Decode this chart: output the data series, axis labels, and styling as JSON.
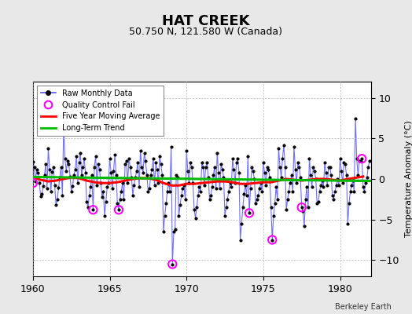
{
  "title": "HAT CREEK",
  "subtitle": "50.750 N, 121.580 W (Canada)",
  "ylabel": "Temperature Anomaly (°C)",
  "watermark": "Berkeley Earth",
  "xlim": [
    1960,
    1982
  ],
  "ylim": [
    -12,
    12
  ],
  "yticks": [
    -10,
    -5,
    0,
    5,
    10
  ],
  "xticks": [
    1960,
    1965,
    1970,
    1975,
    1980
  ],
  "bg_color": "#e8e8e8",
  "plot_bg_color": "#ffffff",
  "raw_line_color": "#5555ff",
  "raw_dot_color": "#000000",
  "ma_color": "#ff0000",
  "trend_color": "#00bb00",
  "qc_color": "#ff00ff",
  "raw_data": [
    1960.0,
    2.1,
    1960.083,
    1.5,
    1960.167,
    -0.3,
    1960.25,
    1.2,
    1960.333,
    0.8,
    1960.417,
    -0.5,
    1960.5,
    -2.1,
    1960.583,
    -1.8,
    1960.667,
    -0.9,
    1960.75,
    0.5,
    1960.833,
    1.8,
    1960.917,
    -1.2,
    1961.0,
    3.8,
    1961.083,
    1.2,
    1961.167,
    -1.5,
    1961.25,
    0.9,
    1961.333,
    1.5,
    1961.417,
    -0.8,
    1961.5,
    -3.2,
    1961.583,
    -2.5,
    1961.667,
    -1.1,
    1961.75,
    0.2,
    1961.833,
    1.5,
    1961.917,
    -2.0,
    1962.0,
    6.5,
    1962.083,
    2.5,
    1962.167,
    1.0,
    1962.25,
    2.2,
    1962.333,
    1.8,
    1962.417,
    0.3,
    1962.5,
    -1.5,
    1962.583,
    -0.9,
    1962.667,
    0.5,
    1962.75,
    1.2,
    1962.833,
    2.8,
    1962.917,
    -0.5,
    1963.0,
    2.0,
    1963.083,
    3.2,
    1963.167,
    0.5,
    1963.25,
    1.5,
    1963.333,
    2.5,
    1963.417,
    0.8,
    1963.5,
    -2.8,
    1963.583,
    -3.5,
    1963.667,
    -2.0,
    1963.75,
    -1.0,
    1963.833,
    0.5,
    1963.917,
    -3.8,
    1964.0,
    1.5,
    1964.083,
    2.8,
    1964.167,
    -0.8,
    1964.25,
    1.8,
    1964.333,
    1.2,
    1964.417,
    -0.5,
    1964.5,
    -2.2,
    1964.583,
    -1.5,
    1964.667,
    -4.5,
    1964.75,
    -2.8,
    1964.833,
    -1.0,
    1964.917,
    -0.5,
    1965.0,
    2.5,
    1965.083,
    0.8,
    1965.167,
    -1.2,
    1965.25,
    1.0,
    1965.333,
    3.0,
    1965.417,
    0.5,
    1965.5,
    -3.0,
    1965.583,
    -3.8,
    1965.667,
    -2.5,
    1965.75,
    -1.5,
    1965.833,
    -0.5,
    1965.917,
    -2.5,
    1966.0,
    1.8,
    1966.083,
    2.2,
    1966.167,
    -0.5,
    1966.25,
    2.5,
    1966.333,
    1.5,
    1966.417,
    0.2,
    1966.5,
    -2.0,
    1966.583,
    -0.8,
    1966.667,
    0.2,
    1966.75,
    1.0,
    1966.833,
    2.0,
    1966.917,
    -1.0,
    1967.0,
    3.5,
    1967.083,
    1.5,
    1967.167,
    0.8,
    1967.25,
    3.2,
    1967.333,
    2.2,
    1967.417,
    0.5,
    1967.5,
    -1.5,
    1967.583,
    -1.2,
    1967.667,
    0.5,
    1967.75,
    1.2,
    1967.833,
    2.5,
    1967.917,
    -0.8,
    1968.0,
    2.0,
    1968.083,
    1.2,
    1968.167,
    -0.5,
    1968.25,
    2.8,
    1968.333,
    1.8,
    1968.417,
    0.5,
    1968.5,
    -6.5,
    1968.583,
    -4.5,
    1968.667,
    -3.0,
    1968.75,
    -1.5,
    1968.833,
    -0.5,
    1968.917,
    -1.5,
    1969.0,
    4.0,
    1969.083,
    -10.5,
    1969.167,
    -6.5,
    1969.25,
    -6.2,
    1969.333,
    0.5,
    1969.417,
    0.2,
    1969.5,
    -4.5,
    1969.583,
    -3.2,
    1969.667,
    -2.0,
    1969.75,
    -1.2,
    1969.833,
    -0.8,
    1969.917,
    -2.5,
    1970.0,
    3.5,
    1970.083,
    1.0,
    1970.167,
    -0.5,
    1970.25,
    2.0,
    1970.333,
    1.5,
    1970.417,
    -0.5,
    1970.5,
    -3.8,
    1970.583,
    -4.8,
    1970.667,
    -3.5,
    1970.75,
    -2.0,
    1970.833,
    -1.0,
    1970.917,
    -1.5,
    1971.0,
    2.0,
    1971.083,
    1.5,
    1971.167,
    -0.8,
    1971.25,
    1.5,
    1971.333,
    2.0,
    1971.417,
    0.2,
    1971.5,
    -2.5,
    1971.583,
    -2.0,
    1971.667,
    -1.0,
    1971.75,
    0.5,
    1971.833,
    1.5,
    1971.917,
    -1.2,
    1972.0,
    3.2,
    1972.083,
    0.8,
    1972.167,
    -1.2,
    1972.25,
    1.8,
    1972.333,
    1.2,
    1972.417,
    0.2,
    1972.5,
    -4.5,
    1972.583,
    -3.5,
    1972.667,
    -2.5,
    1972.75,
    -1.5,
    1972.833,
    -0.5,
    1972.917,
    -1.0,
    1973.0,
    2.5,
    1973.083,
    1.2,
    1973.167,
    -0.5,
    1973.25,
    2.0,
    1973.333,
    2.5,
    1973.417,
    0.8,
    1973.5,
    -7.5,
    1973.583,
    -5.5,
    1973.667,
    -3.5,
    1973.75,
    -1.8,
    1973.833,
    -0.8,
    1973.917,
    -2.0,
    1974.0,
    2.8,
    1974.083,
    -4.2,
    1974.167,
    -1.2,
    1974.25,
    1.5,
    1974.333,
    1.0,
    1974.417,
    0.0,
    1974.5,
    -3.0,
    1974.583,
    -2.5,
    1974.667,
    -2.0,
    1974.75,
    -1.2,
    1974.833,
    -0.5,
    1974.917,
    -1.5,
    1975.0,
    2.0,
    1975.083,
    0.8,
    1975.167,
    -0.8,
    1975.25,
    1.5,
    1975.333,
    1.2,
    1975.417,
    0.2,
    1975.5,
    -3.5,
    1975.583,
    -7.5,
    1975.667,
    -4.5,
    1975.75,
    -3.0,
    1975.833,
    -1.0,
    1975.917,
    -2.5,
    1976.0,
    3.8,
    1976.083,
    1.5,
    1976.167,
    0.2,
    1976.25,
    2.5,
    1976.333,
    4.2,
    1976.417,
    1.5,
    1976.5,
    -3.8,
    1976.583,
    -2.5,
    1976.667,
    -1.5,
    1976.75,
    -0.5,
    1976.833,
    0.5,
    1976.917,
    -1.5,
    1977.0,
    4.0,
    1977.083,
    1.2,
    1977.167,
    -0.5,
    1977.25,
    2.0,
    1977.333,
    1.5,
    1977.417,
    0.2,
    1977.5,
    -3.5,
    1977.583,
    -4.0,
    1977.667,
    -5.8,
    1977.75,
    -2.5,
    1977.833,
    -1.0,
    1977.917,
    -3.5,
    1978.0,
    2.5,
    1978.083,
    0.5,
    1978.167,
    -1.0,
    1978.25,
    1.5,
    1978.333,
    1.0,
    1978.417,
    0.0,
    1978.5,
    -3.0,
    1978.583,
    -2.8,
    1978.667,
    -1.5,
    1978.75,
    -0.8,
    1978.833,
    -0.2,
    1978.917,
    -1.0,
    1979.0,
    2.0,
    1979.083,
    0.8,
    1979.167,
    -0.8,
    1979.25,
    1.5,
    1979.333,
    1.5,
    1979.417,
    0.5,
    1979.5,
    -2.0,
    1979.583,
    -2.5,
    1979.667,
    -1.5,
    1979.75,
    -0.8,
    1979.833,
    0.0,
    1979.917,
    -0.8,
    1980.0,
    2.5,
    1980.083,
    1.0,
    1980.167,
    -0.5,
    1980.25,
    2.0,
    1980.333,
    1.8,
    1980.417,
    0.5,
    1980.5,
    -5.5,
    1980.583,
    -3.0,
    1980.667,
    -1.5,
    1980.75,
    -0.8,
    1980.833,
    -0.2,
    1980.917,
    -1.5,
    1981.0,
    7.5,
    1981.083,
    2.5,
    1981.167,
    0.5,
    1981.25,
    2.2,
    1981.333,
    2.2,
    1981.417,
    2.5,
    1981.5,
    -1.0,
    1981.583,
    -1.5,
    1981.667,
    -0.5,
    1981.75,
    0.2,
    1981.833,
    1.5,
    1981.917,
    2.2
  ],
  "qc_fail_points": [
    [
      1960.0,
      -0.5
    ],
    [
      1963.917,
      -3.8
    ],
    [
      1965.583,
      -3.8
    ],
    [
      1969.083,
      -10.5
    ],
    [
      1974.083,
      -4.2
    ],
    [
      1975.583,
      -7.5
    ],
    [
      1977.5,
      -3.5
    ],
    [
      1981.417,
      2.5
    ]
  ],
  "moving_avg_x": [
    1960.0,
    1960.5,
    1961.0,
    1961.5,
    1962.0,
    1962.5,
    1963.0,
    1963.5,
    1964.0,
    1964.5,
    1965.0,
    1965.5,
    1966.0,
    1966.5,
    1967.0,
    1967.5,
    1968.0,
    1968.5,
    1969.0,
    1969.5,
    1970.0,
    1970.5,
    1971.0,
    1971.5,
    1972.0,
    1972.5,
    1973.0,
    1973.5,
    1974.0,
    1974.5,
    1975.0,
    1975.5,
    1976.0,
    1976.5,
    1977.0,
    1977.5,
    1978.0,
    1978.5,
    1979.0,
    1979.5,
    1980.0,
    1980.5,
    1981.5
  ],
  "moving_avg_y": [
    0.2,
    -0.1,
    -0.3,
    -0.2,
    0.0,
    0.2,
    0.1,
    -0.2,
    -0.4,
    -0.5,
    -0.5,
    -0.4,
    -0.2,
    0.0,
    0.1,
    0.1,
    -0.1,
    -0.5,
    -0.8,
    -0.8,
    -0.6,
    -0.6,
    -0.5,
    -0.4,
    -0.3,
    -0.3,
    -0.4,
    -0.6,
    -0.6,
    -0.5,
    -0.4,
    -0.4,
    -0.2,
    0.0,
    -0.1,
    -0.2,
    -0.1,
    0.0,
    0.0,
    -0.1,
    -0.2,
    0.0,
    0.3
  ],
  "trend_x": [
    1960.0,
    1982.0
  ],
  "trend_y": [
    0.25,
    -0.25
  ]
}
